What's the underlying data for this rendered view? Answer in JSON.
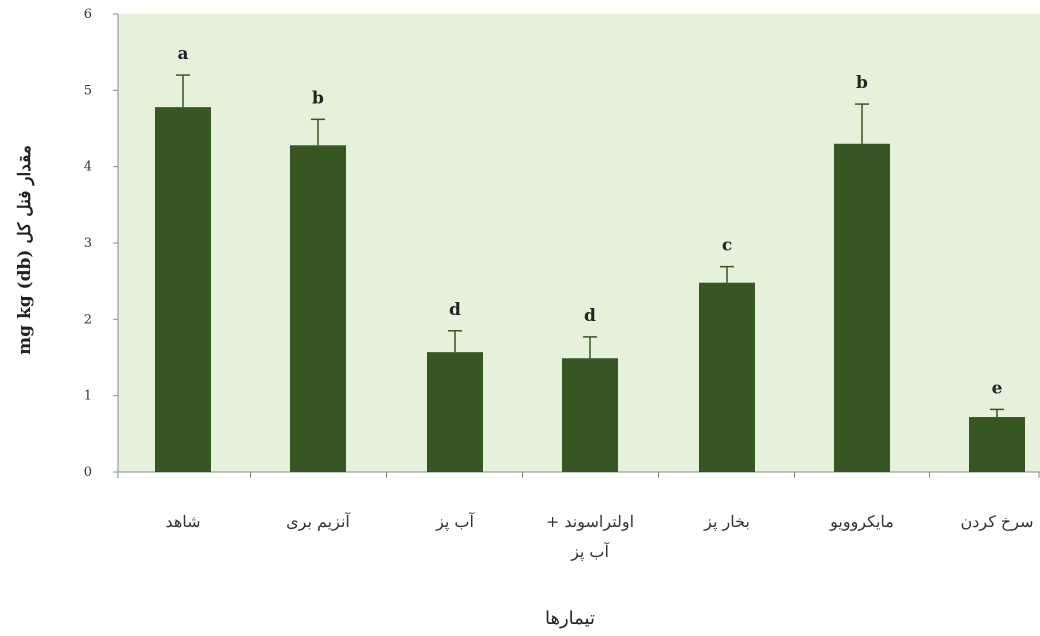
{
  "chart_data": {
    "type": "bar",
    "categories": [
      "شاهد",
      "آنزیم بری",
      "آب پز",
      "اولتراسوند + آب پز",
      "بخار پز",
      "مایکروویو",
      "سرخ کردن"
    ],
    "category_lines": [
      [
        "شاهد"
      ],
      [
        "آنزیم بری"
      ],
      [
        "آب پز"
      ],
      [
        "اولتراسوند +",
        "آب پز"
      ],
      [
        "بخار پز"
      ],
      [
        "مایکروویو"
      ],
      [
        "سرخ کردن"
      ]
    ],
    "values": [
      4.78,
      4.28,
      1.57,
      1.49,
      2.48,
      4.3,
      0.72
    ],
    "errors": [
      0.42,
      0.34,
      0.28,
      0.28,
      0.21,
      0.52,
      0.1
    ],
    "significance_letters": [
      "a",
      "b",
      "d",
      "d",
      "c",
      "b",
      "e"
    ],
    "yticks": [
      0,
      1,
      2,
      3,
      4,
      5,
      6
    ],
    "ylim": [
      0,
      6
    ],
    "xlabel": "تیمارها",
    "ylabel": "mg kg (db)  مقدار فنل کل",
    "grid": false,
    "legend": "none",
    "colors": {
      "bar": "#375623",
      "plot_background": "#e6f1dc",
      "error_bar": "#375623",
      "axis": "#8c8c8c"
    }
  }
}
